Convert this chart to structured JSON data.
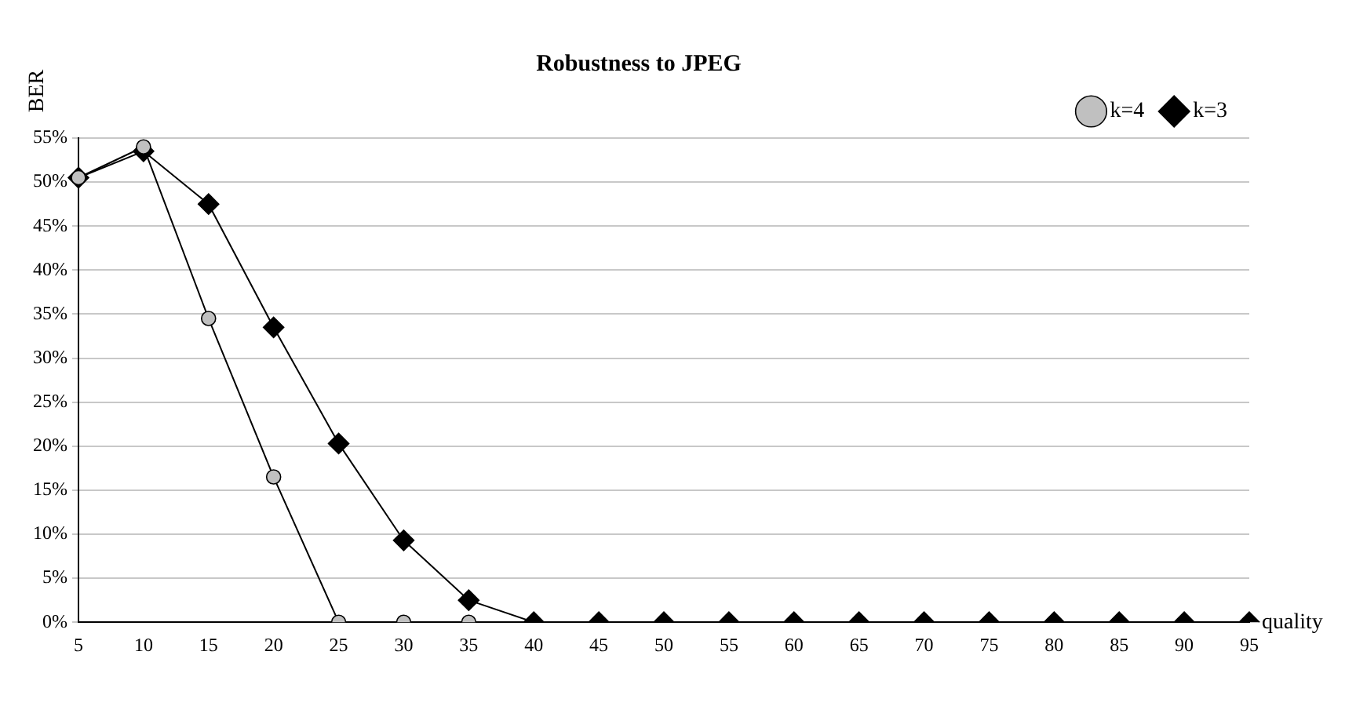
{
  "chart_data": {
    "type": "line",
    "title": "Robustness to JPEG",
    "xlabel": "quality",
    "ylabel": "BER",
    "categories": [
      "5",
      "10",
      "15",
      "20",
      "25",
      "30",
      "35",
      "40",
      "45",
      "50",
      "55",
      "60",
      "65",
      "70",
      "75",
      "80",
      "85",
      "90",
      "95"
    ],
    "series": [
      {
        "name": "k=4",
        "color": "#c0c0c0",
        "marker": "circle",
        "values": [
          50.5,
          54,
          34.5,
          16.5,
          0,
          0,
          0,
          null,
          null,
          null,
          null,
          null,
          null,
          null,
          null,
          null,
          null,
          null,
          null
        ]
      },
      {
        "name": "k=3",
        "color": "#000000",
        "marker": "diamond",
        "values": [
          50.5,
          53.5,
          47.5,
          33.5,
          20.3,
          9.3,
          2.5,
          0,
          0,
          0,
          0,
          0,
          0,
          0,
          0,
          0,
          0,
          0,
          0
        ]
      }
    ],
    "ylim": [
      0,
      55
    ],
    "yticks": [
      {
        "value": 0,
        "label": "0%"
      },
      {
        "value": 5,
        "label": "5%"
      },
      {
        "value": 10,
        "label": "10%"
      },
      {
        "value": 15,
        "label": "15%"
      },
      {
        "value": 20,
        "label": "20%"
      },
      {
        "value": 25,
        "label": "25%"
      },
      {
        "value": 30,
        "label": "30%"
      },
      {
        "value": 35,
        "label": "35%"
      },
      {
        "value": 40,
        "label": "40%"
      },
      {
        "value": 45,
        "label": "45%"
      },
      {
        "value": 50,
        "label": "50%"
      },
      {
        "value": 55,
        "label": "55%"
      }
    ],
    "grid": "y",
    "legend": "top right",
    "line_style": "solid"
  }
}
